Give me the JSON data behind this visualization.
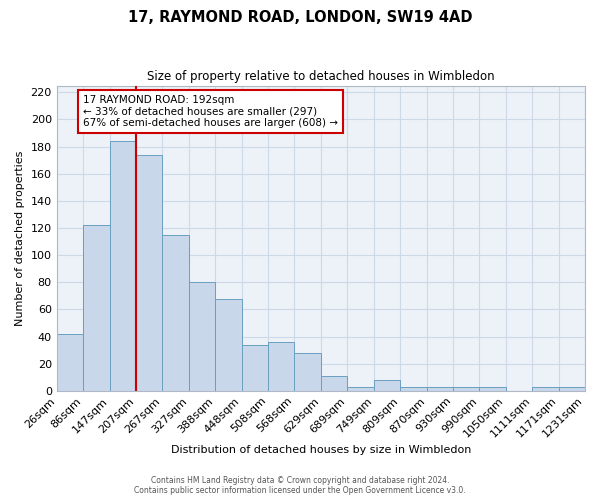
{
  "title": "17, RAYMOND ROAD, LONDON, SW19 4AD",
  "subtitle": "Size of property relative to detached houses in Wimbledon",
  "xlabel": "Distribution of detached houses by size in Wimbledon",
  "ylabel": "Number of detached properties",
  "bar_left_edges": [
    26,
    86,
    147,
    207,
    267,
    327,
    388,
    448,
    508,
    568,
    629,
    689,
    749,
    809,
    870,
    930,
    990,
    1050,
    1111,
    1171
  ],
  "bar_heights": [
    42,
    122,
    184,
    174,
    115,
    80,
    68,
    34,
    36,
    28,
    11,
    3,
    8,
    3,
    3,
    3,
    3,
    0,
    3,
    3
  ],
  "bar_widths": [
    60,
    61,
    60,
    60,
    60,
    61,
    60,
    60,
    60,
    61,
    60,
    60,
    60,
    61,
    60,
    60,
    60,
    61,
    60,
    60
  ],
  "tick_labels": [
    "26sqm",
    "86sqm",
    "147sqm",
    "207sqm",
    "267sqm",
    "327sqm",
    "388sqm",
    "448sqm",
    "508sqm",
    "568sqm",
    "629sqm",
    "689sqm",
    "749sqm",
    "809sqm",
    "870sqm",
    "930sqm",
    "990sqm",
    "1050sqm",
    "1111sqm",
    "1171sqm",
    "1231sqm"
  ],
  "vline_x": 207,
  "ylim": [
    0,
    225
  ],
  "yticks": [
    0,
    20,
    40,
    60,
    80,
    100,
    120,
    140,
    160,
    180,
    200,
    220
  ],
  "bar_facecolor": "#c8d8ea",
  "bar_edgecolor": "#6a9fc0",
  "vline_color": "#cc0000",
  "grid_color": "#cdd8e8",
  "bg_color": "#edf2f8",
  "annotation_text": "17 RAYMOND ROAD: 192sqm\n← 33% of detached houses are smaller (297)\n67% of semi-detached houses are larger (608) →",
  "annotation_box_edgecolor": "#cc0000",
  "footer_line1": "Contains HM Land Registry data © Crown copyright and database right 2024.",
  "footer_line2": "Contains public sector information licensed under the Open Government Licence v3.0."
}
